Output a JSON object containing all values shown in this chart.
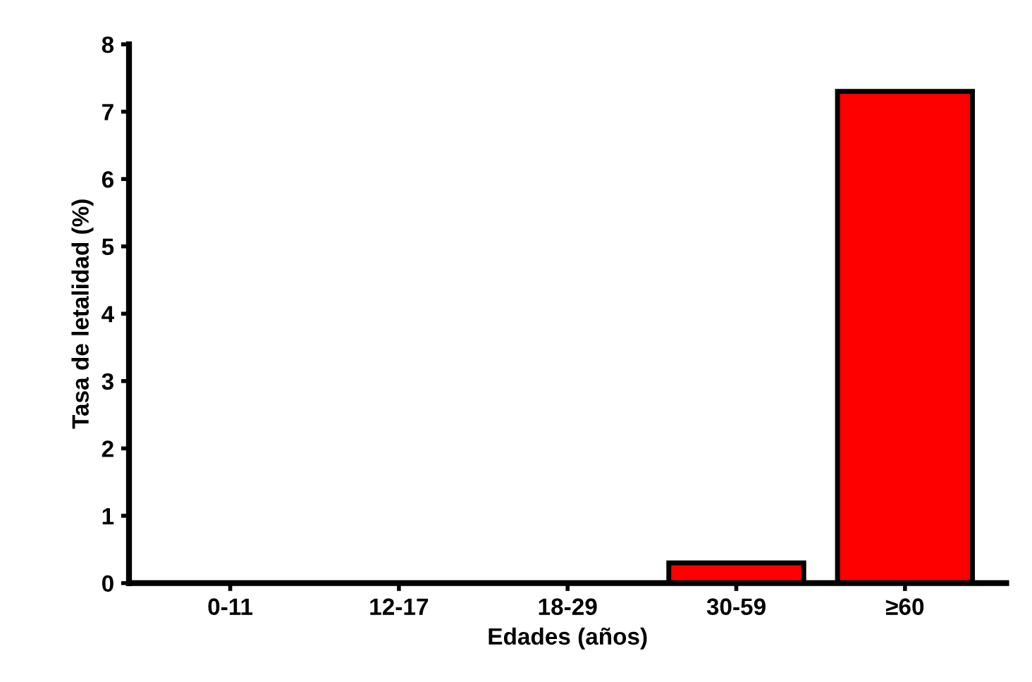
{
  "chart_data": {
    "type": "bar",
    "xlabel": "Edades (años)",
    "ylabel": "Tasa de letalidad (%)",
    "categories": [
      "0-11",
      "12-17",
      "18-29",
      "30-59",
      "≥60"
    ],
    "values": [
      0,
      0,
      0,
      0.3,
      7.3
    ],
    "color": "#ff0000",
    "ylim": [
      0,
      8
    ],
    "yticks": [
      0,
      1,
      2,
      3,
      4,
      5,
      6,
      7,
      8
    ],
    "grid": false,
    "legend": false
  }
}
